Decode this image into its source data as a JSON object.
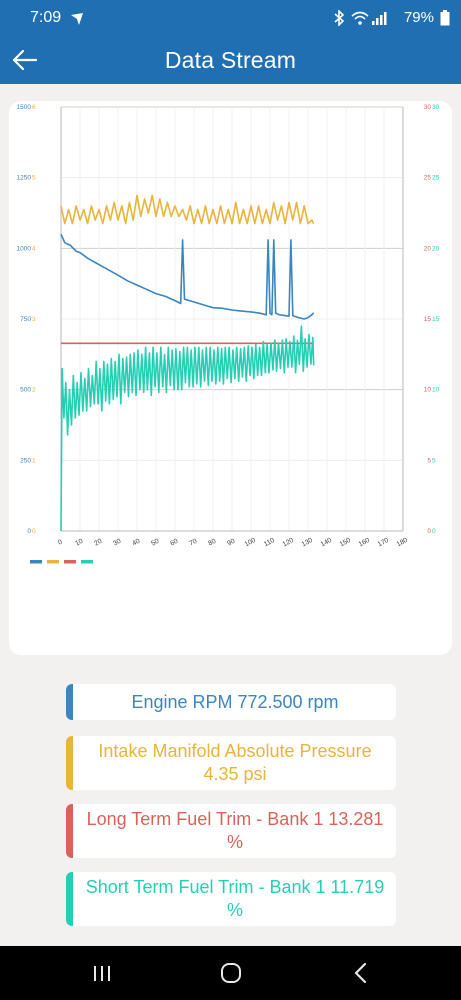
{
  "status_bar": {
    "time": "7:09",
    "battery": "79%",
    "icons": [
      "navigation-icon",
      "bluetooth-icon",
      "wifi-icon",
      "signal-icon",
      "battery-icon"
    ]
  },
  "app_bar": {
    "title": "Data Stream",
    "back_icon": "arrow-left-icon"
  },
  "colors": {
    "brand": "#1f6fb2",
    "rpm": "#3a86c0",
    "map": "#e8b43a",
    "ltft": "#d9625b",
    "stft": "#25cfb3"
  },
  "chart_data": {
    "type": "line",
    "xlim": [
      0,
      180
    ],
    "x_ticks": [
      "0",
      "10",
      "20",
      "30",
      "40",
      "50",
      "60",
      "70",
      "80",
      "90",
      "100",
      "110",
      "120",
      "130",
      "140",
      "150",
      "160",
      "170",
      "180"
    ],
    "y_left1_ticks": [
      "0",
      "250",
      "500",
      "750",
      "1000",
      "1250",
      "1500"
    ],
    "y_left2_ticks": [
      "0",
      "1",
      "2",
      "3",
      "4",
      "5",
      "6"
    ],
    "y_right1_ticks": [
      "0",
      "5",
      "10",
      "15",
      "20",
      "25",
      "30"
    ],
    "y_right2_ticks": [
      "0",
      "5",
      "10",
      "15",
      "20",
      "25",
      "30"
    ],
    "grid": true,
    "legend": "bottom-left",
    "series": [
      {
        "key": "rpm",
        "axis": [
          0,
          1500
        ],
        "color": "#3a86c0",
        "points": [
          [
            0,
            1050
          ],
          [
            2,
            1020
          ],
          [
            5,
            1010
          ],
          [
            8,
            990
          ],
          [
            10,
            985
          ],
          [
            14,
            965
          ],
          [
            18,
            950
          ],
          [
            22,
            935
          ],
          [
            26,
            920
          ],
          [
            30,
            905
          ],
          [
            35,
            885
          ],
          [
            40,
            870
          ],
          [
            45,
            855
          ],
          [
            50,
            840
          ],
          [
            55,
            830
          ],
          [
            60,
            815
          ],
          [
            63,
            805
          ],
          [
            64,
            1030
          ],
          [
            65,
            820
          ],
          [
            70,
            810
          ],
          [
            75,
            800
          ],
          [
            80,
            790
          ],
          [
            85,
            788
          ],
          [
            90,
            782
          ],
          [
            95,
            778
          ],
          [
            100,
            775
          ],
          [
            105,
            770
          ],
          [
            108,
            765
          ],
          [
            109,
            1030
          ],
          [
            110,
            770
          ],
          [
            111,
            765
          ],
          [
            112,
            1030
          ],
          [
            113,
            770
          ],
          [
            115,
            765
          ],
          [
            120,
            760
          ],
          [
            121,
            1030
          ],
          [
            122,
            762
          ],
          [
            125,
            755
          ],
          [
            128,
            750
          ],
          [
            130,
            755
          ],
          [
            132,
            765
          ],
          [
            133,
            772
          ]
        ]
      },
      {
        "key": "map",
        "axis": [
          0,
          6
        ],
        "color": "#e8b43a",
        "points": [
          [
            0,
            4.6
          ],
          [
            2,
            4.35
          ],
          [
            4,
            4.55
          ],
          [
            6,
            4.35
          ],
          [
            8,
            4.6
          ],
          [
            10,
            4.4
          ],
          [
            12,
            4.55
          ],
          [
            14,
            4.35
          ],
          [
            16,
            4.6
          ],
          [
            18,
            4.4
          ],
          [
            20,
            4.55
          ],
          [
            22,
            4.35
          ],
          [
            24,
            4.6
          ],
          [
            26,
            4.4
          ],
          [
            28,
            4.65
          ],
          [
            30,
            4.4
          ],
          [
            32,
            4.6
          ],
          [
            34,
            4.35
          ],
          [
            36,
            4.65
          ],
          [
            38,
            4.4
          ],
          [
            40,
            4.75
          ],
          [
            42,
            4.45
          ],
          [
            44,
            4.7
          ],
          [
            46,
            4.5
          ],
          [
            48,
            4.75
          ],
          [
            50,
            4.45
          ],
          [
            52,
            4.7
          ],
          [
            54,
            4.45
          ],
          [
            56,
            4.65
          ],
          [
            58,
            4.45
          ],
          [
            60,
            4.6
          ],
          [
            62,
            4.45
          ],
          [
            64,
            4.55
          ],
          [
            66,
            4.4
          ],
          [
            68,
            4.6
          ],
          [
            70,
            4.35
          ],
          [
            72,
            4.55
          ],
          [
            74,
            4.35
          ],
          [
            76,
            4.6
          ],
          [
            78,
            4.35
          ],
          [
            80,
            4.55
          ],
          [
            82,
            4.35
          ],
          [
            84,
            4.6
          ],
          [
            86,
            4.35
          ],
          [
            88,
            4.55
          ],
          [
            90,
            4.35
          ],
          [
            92,
            4.65
          ],
          [
            94,
            4.35
          ],
          [
            96,
            4.55
          ],
          [
            98,
            4.35
          ],
          [
            100,
            4.6
          ],
          [
            102,
            4.35
          ],
          [
            104,
            4.6
          ],
          [
            106,
            4.35
          ],
          [
            108,
            4.55
          ],
          [
            110,
            4.35
          ],
          [
            112,
            4.65
          ],
          [
            114,
            4.4
          ],
          [
            116,
            4.6
          ],
          [
            118,
            4.35
          ],
          [
            120,
            4.65
          ],
          [
            122,
            4.4
          ],
          [
            124,
            4.65
          ],
          [
            126,
            4.35
          ],
          [
            128,
            4.6
          ],
          [
            130,
            4.35
          ],
          [
            132,
            4.4
          ],
          [
            133,
            4.35
          ]
        ]
      },
      {
        "key": "ltft",
        "axis": [
          0,
          30
        ],
        "color": "#d9625b",
        "points": [
          [
            0,
            13.281
          ],
          [
            133,
            13.281
          ]
        ]
      },
      {
        "key": "stft",
        "axis": [
          0,
          30
        ],
        "color": "#25cfb3",
        "points": [
          [
            0,
            0
          ],
          [
            0.6,
            11.5
          ],
          [
            1.5,
            8
          ],
          [
            2.5,
            10.5
          ],
          [
            3.5,
            6.8
          ],
          [
            4.5,
            10
          ],
          [
            5.5,
            7.5
          ],
          [
            6.5,
            11
          ],
          [
            7.5,
            8
          ],
          [
            8.5,
            10.5
          ],
          [
            9.5,
            8.2
          ],
          [
            10.5,
            11.2
          ],
          [
            11.5,
            8.5
          ],
          [
            12.5,
            10.8
          ],
          [
            13.5,
            8.5
          ],
          [
            14.5,
            11.5
          ],
          [
            15.5,
            8.8
          ],
          [
            16.5,
            11
          ],
          [
            17.5,
            9
          ],
          [
            18.5,
            12
          ],
          [
            19.5,
            9
          ],
          [
            20.5,
            11.5
          ],
          [
            21.5,
            8.5
          ],
          [
            22.5,
            12
          ],
          [
            23.5,
            9.2
          ],
          [
            24.5,
            11.8
          ],
          [
            25.5,
            9
          ],
          [
            26.5,
            12.2
          ],
          [
            27.5,
            9.3
          ],
          [
            28.5,
            12
          ],
          [
            29.5,
            9.5
          ],
          [
            30.5,
            12.5
          ],
          [
            31.5,
            9
          ],
          [
            32.5,
            12.2
          ],
          [
            33.5,
            9.8
          ],
          [
            34.5,
            12.3
          ],
          [
            35.5,
            9.5
          ],
          [
            36.5,
            12.5
          ],
          [
            37.5,
            9.8
          ],
          [
            38.5,
            12.6
          ],
          [
            39.5,
            9.6
          ],
          [
            40.5,
            12.8
          ],
          [
            41.5,
            10
          ],
          [
            42.5,
            12.5
          ],
          [
            43.5,
            9.8
          ],
          [
            44.5,
            13
          ],
          [
            45.5,
            10
          ],
          [
            46.5,
            12.6
          ],
          [
            47.5,
            9.6
          ],
          [
            48.5,
            13
          ],
          [
            49.5,
            10.2
          ],
          [
            50.5,
            12.6
          ],
          [
            51.5,
            9.8
          ],
          [
            52.5,
            13
          ],
          [
            53.5,
            10.2
          ],
          [
            54.5,
            12.5
          ],
          [
            55.5,
            9.8
          ],
          [
            56.5,
            13
          ],
          [
            57.5,
            10.3
          ],
          [
            58.5,
            12.8
          ],
          [
            59.5,
            10
          ],
          [
            60.5,
            12.9
          ],
          [
            61.5,
            10
          ],
          [
            62.5,
            12.7
          ],
          [
            63.5,
            10
          ],
          [
            64.5,
            13
          ],
          [
            65.5,
            10.5
          ],
          [
            66.5,
            13
          ],
          [
            67.5,
            10.2
          ],
          [
            68.5,
            12.8
          ],
          [
            69.5,
            10.2
          ],
          [
            70.5,
            13
          ],
          [
            71.5,
            10.4
          ],
          [
            72.5,
            13
          ],
          [
            73.5,
            10.2
          ],
          [
            74.5,
            12.8
          ],
          [
            75.5,
            10.6
          ],
          [
            76.5,
            13
          ],
          [
            77.5,
            10.3
          ],
          [
            78.5,
            13
          ],
          [
            79.5,
            10.6
          ],
          [
            80.5,
            12.8
          ],
          [
            81.5,
            10.4
          ],
          [
            82.5,
            13
          ],
          [
            83.5,
            10.6
          ],
          [
            84.5,
            12.9
          ],
          [
            85.5,
            10.4
          ],
          [
            86.5,
            13
          ],
          [
            87.5,
            10.8
          ],
          [
            88.5,
            13
          ],
          [
            89.5,
            10.5
          ],
          [
            90.5,
            12.8
          ],
          [
            91.5,
            10.8
          ],
          [
            92.5,
            13
          ],
          [
            93.5,
            10.6
          ],
          [
            94.5,
            12.9
          ],
          [
            95.5,
            10.9
          ],
          [
            96.5,
            13
          ],
          [
            97.5,
            10.6
          ],
          [
            98.5,
            13.1
          ],
          [
            99.5,
            11
          ],
          [
            100.5,
            13
          ],
          [
            101.5,
            10.8
          ],
          [
            102.5,
            13.2
          ],
          [
            103.5,
            11
          ],
          [
            104.5,
            13
          ],
          [
            105.5,
            11
          ],
          [
            106.5,
            13.4
          ],
          [
            107.5,
            11.2
          ],
          [
            108.5,
            13.2
          ],
          [
            109.5,
            11.2
          ],
          [
            110.5,
            13.3
          ],
          [
            111.5,
            11.4
          ],
          [
            112.5,
            13.5
          ],
          [
            113.5,
            11.3
          ],
          [
            114.5,
            13.3
          ],
          [
            115.5,
            11.5
          ],
          [
            116.5,
            13.5
          ],
          [
            117.5,
            11.2
          ],
          [
            118.5,
            13.6
          ],
          [
            119.5,
            11.6
          ],
          [
            120.5,
            13.4
          ],
          [
            121.5,
            11.6
          ],
          [
            122.5,
            13.8
          ],
          [
            123.5,
            11.2
          ],
          [
            124.5,
            13.5
          ],
          [
            125.5,
            11.8
          ],
          [
            126.5,
            14.5
          ],
          [
            127.5,
            11.3
          ],
          [
            128.5,
            13.6
          ],
          [
            129.5,
            11.6
          ],
          [
            130.5,
            13.9
          ],
          [
            131.5,
            11.8
          ],
          [
            132.5,
            13.7
          ],
          [
            133,
            11.719
          ]
        ]
      }
    ]
  },
  "readings": [
    {
      "key": "rpm",
      "label": "Engine RPM 772.500 rpm",
      "color": "#3a86c0"
    },
    {
      "key": "map",
      "label": "Intake Manifold Absolute Pressure\n4.35 psi",
      "color": "#e8b43a"
    },
    {
      "key": "ltft",
      "label": "Long Term Fuel Trim - Bank 1 13.281\n%",
      "color": "#d9625b"
    },
    {
      "key": "stft",
      "label": "Short Term Fuel Trim - Bank 1 11.719\n%",
      "color": "#25cfb3"
    }
  ],
  "nav_bar": {
    "icons": [
      "recent-apps-icon",
      "home-icon",
      "back-icon"
    ]
  }
}
